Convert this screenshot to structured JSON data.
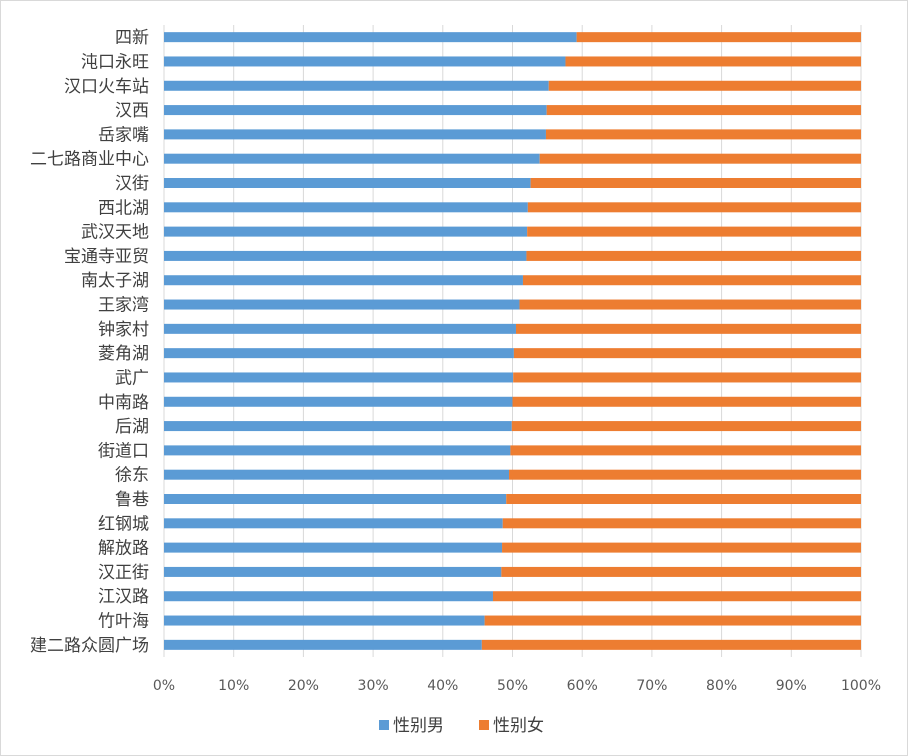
{
  "chart_data": {
    "type": "bar",
    "orientation": "horizontal",
    "stacked": "percent",
    "title": "",
    "xlabel": "",
    "ylabel": "",
    "xlim": [
      0,
      100
    ],
    "x_ticks": [
      "0%",
      "10%",
      "20%",
      "30%",
      "40%",
      "50%",
      "60%",
      "70%",
      "80%",
      "90%",
      "100%"
    ],
    "grid": "vertical",
    "legend_position": "bottom",
    "categories": [
      "四新",
      "沌口永旺",
      "汉口火车站",
      "汉西",
      "岳家嘴",
      "二七路商业中心",
      "汉街",
      "西北湖",
      "武汉天地",
      "宝通寺亚贸",
      "南太子湖",
      "王家湾",
      "钟家村",
      "菱角湖",
      "武广",
      "中南路",
      "后湖",
      "街道口",
      "徐东",
      "鲁巷",
      "红钢城",
      "解放路",
      "汉正街",
      "江汉路",
      "竹叶海",
      "建二路众圆广场"
    ],
    "series": [
      {
        "name": "性别男",
        "color": "#5b9bd5",
        "values": [
          59.2,
          57.6,
          55.2,
          54.9,
          54.8,
          53.9,
          52.6,
          52.2,
          52.1,
          52.0,
          51.5,
          51.0,
          50.5,
          50.2,
          50.1,
          50.0,
          49.9,
          49.7,
          49.5,
          49.1,
          48.6,
          48.5,
          48.4,
          47.2,
          46.0,
          45.6
        ]
      },
      {
        "name": "性别女",
        "color": "#ed7d31",
        "values": [
          40.8,
          42.4,
          44.8,
          45.1,
          45.2,
          46.1,
          47.4,
          47.8,
          47.9,
          48.0,
          48.5,
          49.0,
          49.5,
          49.8,
          49.9,
          50.0,
          50.1,
          50.3,
          50.5,
          50.9,
          51.4,
          51.5,
          51.6,
          52.8,
          54.0,
          54.4
        ]
      }
    ]
  }
}
